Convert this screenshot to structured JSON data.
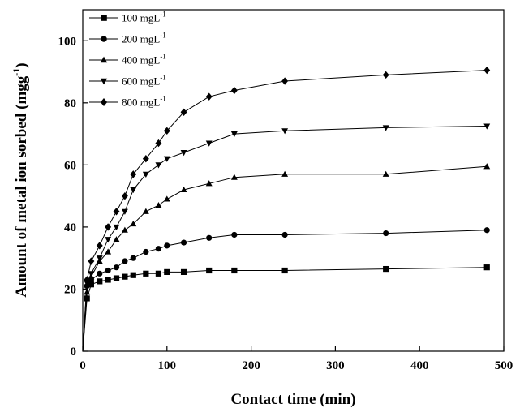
{
  "chart_data": {
    "type": "line",
    "title": "",
    "xlabel": "Contact time (min)",
    "ylabel": "Amount of metal ion sorbed (mgg-1)",
    "ylabel_main": "Amount of metal ion sorbed (mgg",
    "ylabel_sup": "-1",
    "ylabel_tail": ")",
    "xlim": [
      0,
      500
    ],
    "ylim": [
      0,
      110
    ],
    "x_ticks": [
      0,
      100,
      200,
      300,
      400,
      500
    ],
    "y_ticks": [
      0,
      20,
      40,
      60,
      80,
      100
    ],
    "grid": false,
    "legend_position": "top-left",
    "series": [
      {
        "name": "100 mgL-1",
        "label_main": "100 mgL",
        "label_sup": "-1",
        "marker": "square",
        "x": [
          0,
          5,
          10,
          20,
          30,
          40,
          50,
          60,
          75,
          90,
          100,
          120,
          150,
          180,
          240,
          360,
          480
        ],
        "y": [
          0,
          17,
          21.5,
          22.5,
          23,
          23.5,
          24,
          24.5,
          25,
          25,
          25.5,
          25.5,
          26,
          26,
          26,
          26.5,
          27
        ]
      },
      {
        "name": "200 mgL-1",
        "label_main": "200 mgL",
        "label_sup": "-1",
        "marker": "circle",
        "x": [
          0,
          5,
          10,
          20,
          30,
          40,
          50,
          60,
          75,
          90,
          100,
          120,
          150,
          180,
          240,
          360,
          480
        ],
        "y": [
          0,
          21,
          23,
          25,
          26,
          27,
          29,
          30,
          32,
          33,
          34,
          35,
          36.5,
          37.5,
          37.5,
          38,
          39
        ]
      },
      {
        "name": "400 mgL-1",
        "label_main": "400 mgL",
        "label_sup": "-1",
        "marker": "triangle-up",
        "x": [
          0,
          5,
          10,
          20,
          30,
          40,
          50,
          60,
          75,
          90,
          100,
          120,
          150,
          180,
          240,
          360,
          480
        ],
        "y": [
          0,
          19,
          24,
          29,
          32,
          36,
          39,
          41,
          45,
          47,
          49,
          52,
          54,
          56,
          57,
          57,
          59.5
        ]
      },
      {
        "name": "600 mgL-1",
        "label_main": "600 mgL",
        "label_sup": "-1",
        "marker": "triangle-down",
        "x": [
          0,
          5,
          10,
          20,
          30,
          40,
          50,
          60,
          75,
          90,
          100,
          120,
          150,
          180,
          240,
          360,
          480
        ],
        "y": [
          0,
          22,
          25,
          30,
          36,
          40,
          45,
          52,
          57,
          60,
          62,
          64,
          67,
          70,
          71,
          72,
          72.5
        ]
      },
      {
        "name": "800 mgL-1",
        "label_main": "800 mgL",
        "label_sup": "-1",
        "marker": "diamond",
        "x": [
          0,
          5,
          10,
          20,
          30,
          40,
          50,
          60,
          75,
          90,
          100,
          120,
          150,
          180,
          240,
          360,
          480
        ],
        "y": [
          0,
          23,
          29,
          34,
          40,
          45,
          50,
          57,
          62,
          67,
          71,
          77,
          82,
          84,
          87,
          89,
          90.5
        ]
      }
    ]
  }
}
